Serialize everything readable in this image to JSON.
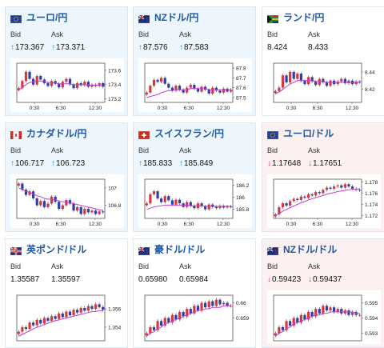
{
  "labels": {
    "bid": "Bid",
    "ask": "Ask"
  },
  "colors": {
    "up": "#1d9bd1",
    "down": "#d9363e",
    "ma": "#c23bd4",
    "candle_up": "#d9363e",
    "candle_down": "#2c3fa8"
  },
  "cards": [
    {
      "pair": "ユーロ/円",
      "flag": "eu-jp-flag-icon",
      "trend": "up",
      "bid": "173.367",
      "ask": "173.371",
      "chart_data": {
        "type": "candlestick",
        "x_ticks": [
          "0:30",
          "6:30",
          "12:30"
        ],
        "y_ticks": [
          "173.6",
          "173.4",
          "173.2"
        ],
        "ylim": [
          173.15,
          173.7
        ],
        "closes": [
          173.35,
          173.45,
          173.58,
          173.48,
          173.4,
          173.52,
          173.47,
          173.42,
          173.38,
          173.45,
          173.41,
          173.36,
          173.44,
          173.48,
          173.4,
          173.35,
          173.42,
          173.39,
          173.44,
          173.37,
          173.4,
          173.38,
          173.42,
          173.37
        ],
        "ma": [
          173.32,
          173.36,
          173.4,
          173.43,
          173.44,
          173.45,
          173.45,
          173.44,
          173.43,
          173.43,
          173.42,
          173.41,
          173.41,
          173.41,
          173.41,
          173.4,
          173.4,
          173.4,
          173.4,
          173.39,
          173.39,
          173.39,
          173.39,
          173.38
        ]
      }
    },
    {
      "pair": "NZドル/円",
      "flag": "nz-jp-flag-icon",
      "trend": "up",
      "bid": "87.576",
      "ask": "87.583",
      "chart_data": {
        "type": "candlestick",
        "x_ticks": [
          "0:30",
          "6:30",
          "12:30"
        ],
        "y_ticks": [
          "87.8",
          "87.7",
          "87.6",
          "87.5"
        ],
        "ylim": [
          87.45,
          87.85
        ],
        "closes": [
          87.55,
          87.62,
          87.68,
          87.66,
          87.7,
          87.64,
          87.6,
          87.57,
          87.62,
          87.58,
          87.55,
          87.6,
          87.63,
          87.59,
          87.56,
          87.61,
          87.58,
          87.54,
          87.6,
          87.57,
          87.55,
          87.59,
          87.56,
          87.58
        ],
        "ma": [
          87.5,
          87.51,
          87.52,
          87.53,
          87.55,
          87.56,
          87.57,
          87.57,
          87.58,
          87.58,
          87.58,
          87.58,
          87.59,
          87.59,
          87.59,
          87.59,
          87.59,
          87.58,
          87.58,
          87.58,
          87.58,
          87.58,
          87.58,
          87.58
        ]
      }
    },
    {
      "pair": "ランド/円",
      "flag": "za-jp-flag-icon",
      "trend": "flat",
      "bid": "8.424",
      "ask": "8.433",
      "chart_data": {
        "type": "candlestick",
        "x_ticks": [
          "0:30",
          "6:30",
          "12:30"
        ],
        "y_ticks": [
          "8.44",
          "8.42"
        ],
        "ylim": [
          8.405,
          8.45
        ],
        "closes": [
          8.418,
          8.422,
          8.436,
          8.428,
          8.44,
          8.432,
          8.438,
          8.43,
          8.426,
          8.434,
          8.429,
          8.425,
          8.432,
          8.428,
          8.424,
          8.43,
          8.426,
          8.429,
          8.432,
          8.427,
          8.43,
          8.426,
          8.429,
          8.428
        ],
        "ma": [
          8.415,
          8.417,
          8.42,
          8.423,
          8.426,
          8.428,
          8.43,
          8.43,
          8.43,
          8.43,
          8.43,
          8.429,
          8.429,
          8.429,
          8.428,
          8.428,
          8.428,
          8.428,
          8.428,
          8.428,
          8.428,
          8.428,
          8.428,
          8.428
        ]
      }
    },
    {
      "pair": "カナダドル/円",
      "flag": "ca-jp-flag-icon",
      "trend": "up",
      "bid": "106.717",
      "ask": "106.723",
      "chart_data": {
        "type": "candlestick",
        "x_ticks": [
          "0:30",
          "6:30",
          "12:30"
        ],
        "y_ticks": [
          "107",
          "106.8"
        ],
        "ylim": [
          106.65,
          107.1
        ],
        "closes": [
          107.05,
          106.98,
          106.92,
          106.96,
          106.88,
          106.8,
          106.85,
          106.78,
          106.82,
          106.9,
          106.84,
          106.76,
          106.8,
          106.86,
          106.82,
          106.74,
          106.78,
          106.7,
          106.76,
          106.72,
          106.74,
          106.7,
          106.73,
          106.72
        ],
        "ma": [
          107.0,
          106.98,
          106.96,
          106.95,
          106.93,
          106.91,
          106.9,
          106.88,
          106.87,
          106.87,
          106.86,
          106.85,
          106.84,
          106.84,
          106.83,
          106.82,
          106.81,
          106.8,
          106.79,
          106.78,
          106.77,
          106.76,
          106.75,
          106.74
        ]
      }
    },
    {
      "pair": "スイスフラン/円",
      "flag": "ch-jp-flag-icon",
      "trend": "up",
      "bid": "185.833",
      "ask": "185.849",
      "chart_data": {
        "type": "candlestick",
        "x_ticks": [
          "0:30",
          "6:30",
          "12:30"
        ],
        "y_ticks": [
          "186.2",
          "186",
          "185.8"
        ],
        "ylim": [
          185.65,
          186.3
        ],
        "closes": [
          185.9,
          186.05,
          186.1,
          185.98,
          185.92,
          186.02,
          185.95,
          185.88,
          185.96,
          185.9,
          185.84,
          185.92,
          185.86,
          185.82,
          185.9,
          185.85,
          185.8,
          185.88,
          185.84,
          185.82,
          185.86,
          185.83,
          185.85,
          185.84
        ],
        "ma": [
          185.8,
          185.82,
          185.84,
          185.85,
          185.86,
          185.87,
          185.87,
          185.87,
          185.87,
          185.87,
          185.87,
          185.87,
          185.86,
          185.86,
          185.86,
          185.86,
          185.85,
          185.85,
          185.85,
          185.85,
          185.85,
          185.85,
          185.85,
          185.85
        ]
      }
    },
    {
      "pair": "ユーロ/ドル",
      "flag": "eu-us-flag-icon",
      "trend": "down",
      "bid": "1.17648",
      "ask": "1.17651",
      "chart_data": {
        "type": "candlestick",
        "x_ticks": [
          "0:30",
          "6:30",
          "12:30"
        ],
        "y_ticks": [
          "1.178",
          "1.176",
          "1.174",
          "1.172"
        ],
        "ylim": [
          1.1715,
          1.1785
        ],
        "closes": [
          1.1722,
          1.1735,
          1.1742,
          1.1738,
          1.1746,
          1.175,
          1.1748,
          1.1754,
          1.1752,
          1.1758,
          1.1756,
          1.1762,
          1.176,
          1.1766,
          1.177,
          1.1768,
          1.1772,
          1.1774,
          1.177,
          1.1776,
          1.1772,
          1.1768,
          1.1766,
          1.1765
        ],
        "ma": [
          1.172,
          1.1724,
          1.1728,
          1.1731,
          1.1734,
          1.1737,
          1.174,
          1.1743,
          1.1745,
          1.1748,
          1.175,
          1.1752,
          1.1754,
          1.1756,
          1.1758,
          1.176,
          1.1761,
          1.1763,
          1.1764,
          1.1765,
          1.1766,
          1.1767,
          1.1767,
          1.1768
        ]
      }
    },
    {
      "pair": "英ポンド/ドル",
      "flag": "gb-us-flag-icon",
      "trend": "flat",
      "bid": "1.35587",
      "ask": "1.35597",
      "chart_data": {
        "type": "candlestick",
        "x_ticks": [],
        "y_ticks": [
          "1.356",
          "1.354"
        ],
        "ylim": [
          1.3525,
          1.3575
        ],
        "closes": [
          1.3535,
          1.354,
          1.3538,
          1.3545,
          1.3542,
          1.3548,
          1.3544,
          1.355,
          1.3547,
          1.3552,
          1.3549,
          1.3555,
          1.3551,
          1.3557,
          1.3553,
          1.3559,
          1.3556,
          1.3561,
          1.3558,
          1.3563,
          1.356,
          1.3565,
          1.3562,
          1.3559
        ],
        "ma": [
          1.353,
          1.3532,
          1.3534,
          1.3536,
          1.3538,
          1.354,
          1.3541,
          1.3543,
          1.3544,
          1.3546,
          1.3547,
          1.3548,
          1.3549,
          1.355,
          1.3551,
          1.3552,
          1.3553,
          1.3554,
          1.3555,
          1.3556,
          1.3557,
          1.3557,
          1.3558,
          1.3558
        ]
      }
    },
    {
      "pair": "豪ドル/ドル",
      "flag": "au-us-flag-icon",
      "trend": "flat",
      "bid": "0.65980",
      "ask": "0.65984",
      "chart_data": {
        "type": "candlestick",
        "x_ticks": [],
        "y_ticks": [
          "0.66",
          "0.659"
        ],
        "ylim": [
          0.6575,
          0.6605
        ],
        "closes": [
          0.658,
          0.6584,
          0.6582,
          0.6588,
          0.6585,
          0.659,
          0.6587,
          0.6592,
          0.6589,
          0.6594,
          0.6591,
          0.6596,
          0.6593,
          0.6598,
          0.6595,
          0.66,
          0.6597,
          0.6601,
          0.6598,
          0.6602,
          0.6599,
          0.66,
          0.6598,
          0.6598
        ],
        "ma": [
          0.6578,
          0.658,
          0.6581,
          0.6583,
          0.6584,
          0.6586,
          0.6587,
          0.6588,
          0.6589,
          0.659,
          0.6591,
          0.6592,
          0.6593,
          0.6594,
          0.6595,
          0.6595,
          0.6596,
          0.6596,
          0.6597,
          0.6597,
          0.6597,
          0.6598,
          0.6598,
          0.6598
        ]
      }
    },
    {
      "pair": "NZドル/ドル",
      "flag": "nz-us-flag-icon",
      "trend": "down",
      "bid": "0.59423",
      "ask": "0.59437",
      "chart_data": {
        "type": "candlestick",
        "x_ticks": [],
        "y_ticks": [
          "0.595",
          "0.594",
          "0.593"
        ],
        "ylim": [
          0.5925,
          0.5955
        ],
        "closes": [
          0.593,
          0.5934,
          0.5932,
          0.5938,
          0.5935,
          0.594,
          0.5937,
          0.5942,
          0.5939,
          0.5944,
          0.5941,
          0.5946,
          0.5943,
          0.5948,
          0.5945,
          0.5947,
          0.5944,
          0.5946,
          0.5943,
          0.5945,
          0.5942,
          0.5944,
          0.5942,
          0.5942
        ],
        "ma": [
          0.5928,
          0.593,
          0.5931,
          0.5933,
          0.5934,
          0.5936,
          0.5937,
          0.5938,
          0.5939,
          0.594,
          0.5941,
          0.5942,
          0.5942,
          0.5943,
          0.5943,
          0.5944,
          0.5944,
          0.5944,
          0.5944,
          0.5944,
          0.5944,
          0.5944,
          0.5943,
          0.5943
        ]
      }
    }
  ]
}
